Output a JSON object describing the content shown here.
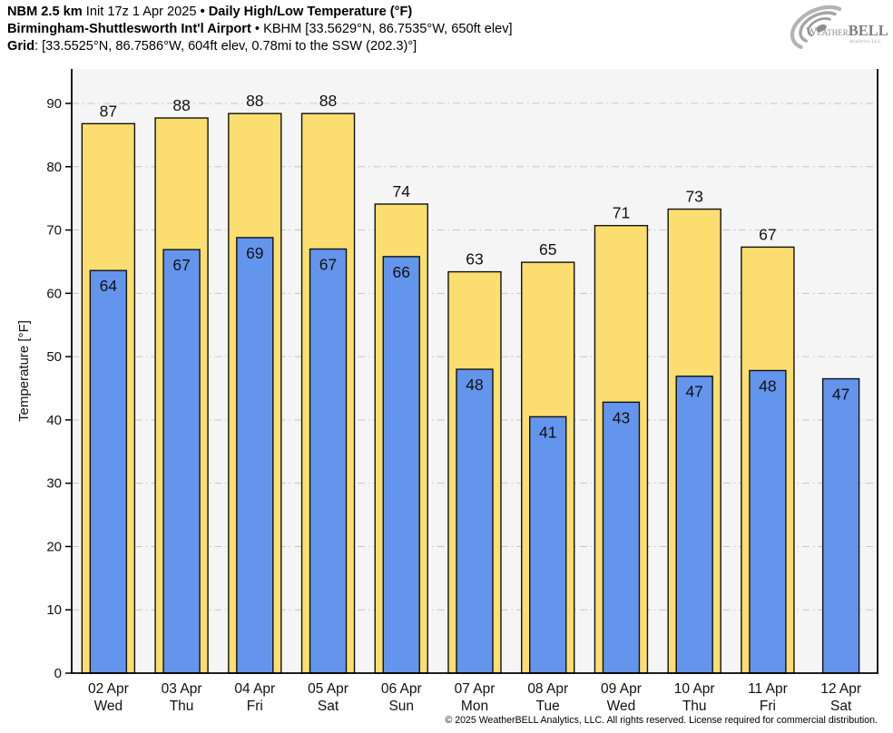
{
  "header": {
    "model": "NBM 2.5 km",
    "init": "Init 17z 1 Apr 2025",
    "bullet1": "•",
    "product": "Daily High/Low Temperature (°F)",
    "station": "Birmingham-Shuttlesworth Int'l Airport",
    "bullet2": "•",
    "station_meta": "KBHM [33.5629°N, 86.7535°W, 650ft elev]",
    "grid_label": "Grid",
    "grid_value": ": [33.5525°N, 86.7586°W, 604ft elev, 0.78mi to the SSW (202.3)°]"
  },
  "logo": {
    "weather": "Weather",
    "bell": "BELL",
    "sub": "Analytics LLC"
  },
  "footer": {
    "copyright": "© 2025 WeatherBELL Analytics, LLC. All rights reserved. License required for commercial distribution."
  },
  "chart_data": {
    "type": "bar",
    "title": "Daily High/Low Temperature (°F)",
    "ylabel": "Temperature [°F]",
    "ylim": [
      0,
      95.4
    ],
    "yticks": [
      0,
      10,
      20,
      30,
      40,
      50,
      60,
      70,
      80,
      90
    ],
    "grid": true,
    "legend": "none",
    "categories": [
      "02 Apr",
      "03 Apr",
      "04 Apr",
      "05 Apr",
      "06 Apr",
      "07 Apr",
      "08 Apr",
      "09 Apr",
      "10 Apr",
      "11 Apr",
      "12 Apr"
    ],
    "day_names": [
      "Wed",
      "Thu",
      "Fri",
      "Sat",
      "Sun",
      "Mon",
      "Tue",
      "Wed",
      "Thu",
      "Fri",
      "Sat"
    ],
    "series": [
      {
        "name": "High",
        "color": "#FBDE6F",
        "border": "#111111",
        "values": [
          86.8,
          87.7,
          88.4,
          88.4,
          74.1,
          63.4,
          64.9,
          70.7,
          73.3,
          67.3,
          null
        ],
        "labels": [
          "87",
          "88",
          "88",
          "88",
          "74",
          "63",
          "65",
          "71",
          "73",
          "67",
          null
        ]
      },
      {
        "name": "Low",
        "color": "#6495ED",
        "border": "#111111",
        "values": [
          63.6,
          66.9,
          68.8,
          67.0,
          65.8,
          48.0,
          40.5,
          42.8,
          46.9,
          47.8,
          46.5
        ],
        "labels": [
          "64",
          "67",
          "69",
          "67",
          "66",
          "48",
          "41",
          "43",
          "47",
          "48",
          "47"
        ]
      }
    ],
    "colors": {
      "plot_background": "#f5f5f5",
      "gridline": "#c6c6c6",
      "axis": "#000000",
      "label_text": "#111111"
    }
  }
}
